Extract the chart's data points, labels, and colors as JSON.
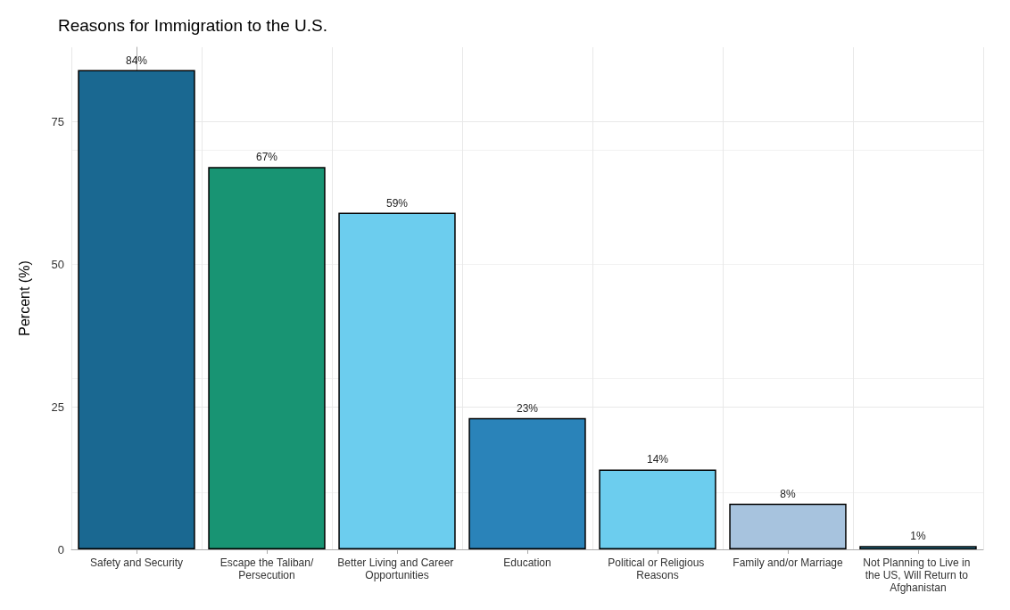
{
  "chart_data": {
    "type": "bar",
    "title": "Reasons for Immigration to the U.S.",
    "ylabel": "Percent (%)",
    "categories": [
      "Safety and Security",
      "Escape the Taliban/Persecution",
      "Better Living and Career Opportunities",
      "Education",
      "Political or Religious Reasons",
      "Family and/or Marriage",
      "Not Planning to Live in the US, Will Return to Afghanistan"
    ],
    "values": [
      84,
      67,
      59,
      23,
      14,
      8,
      0.6
    ],
    "value_labels": [
      "84%",
      "67%",
      "59%",
      "23%",
      "14%",
      "8%",
      "1%"
    ],
    "colors": [
      "#1a6891",
      "#189473",
      "#6ccdee",
      "#2a83b9",
      "#6ccdee",
      "#a7c3de",
      "#3bb0d9"
    ],
    "ylim": [
      0,
      88
    ],
    "yticks": [
      0,
      25,
      50,
      75
    ],
    "grid": true
  }
}
